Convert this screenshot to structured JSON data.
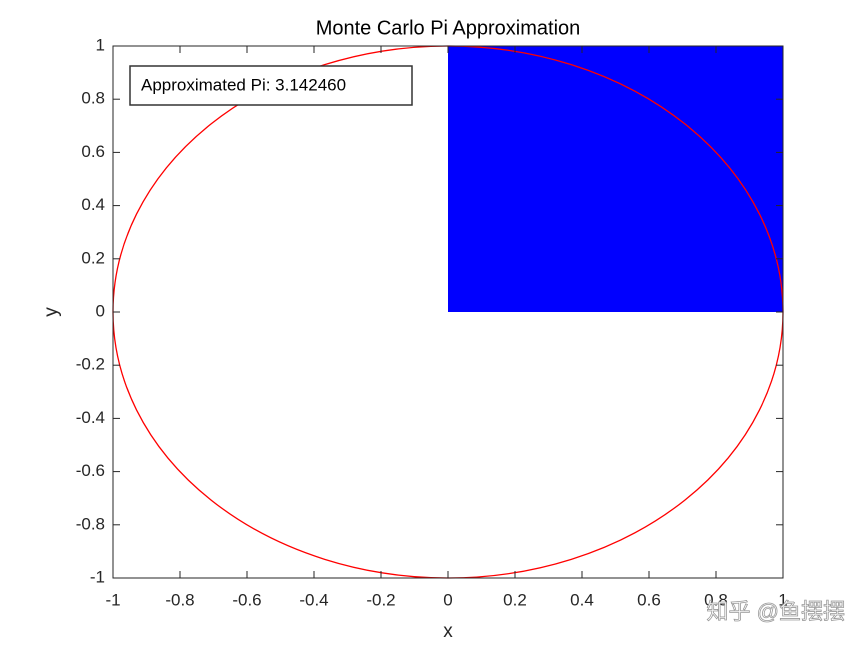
{
  "chart_data": {
    "type": "scatter",
    "title": "Monte Carlo Pi Approximation",
    "x_label": "x",
    "y_label": "y",
    "annotation": "Approximated Pi: 3.142460",
    "sample_region": {
      "x": [
        0,
        1
      ],
      "y": [
        0,
        1
      ],
      "color": "#0000ff"
    },
    "circle": {
      "radius": 1,
      "color": "#ff0000"
    },
    "xlim": [
      -1,
      1
    ],
    "ylim": [
      -1,
      1
    ],
    "xticks": [
      -1,
      -0.8,
      -0.6,
      -0.4,
      -0.2,
      0,
      0.2,
      0.4,
      0.6,
      0.8,
      1
    ],
    "yticks": [
      -1,
      -0.8,
      -0.6,
      -0.4,
      -0.2,
      0,
      0.2,
      0.4,
      0.6,
      0.8,
      1
    ],
    "grid": false,
    "watermark": "知乎 @鱼摆摆"
  }
}
